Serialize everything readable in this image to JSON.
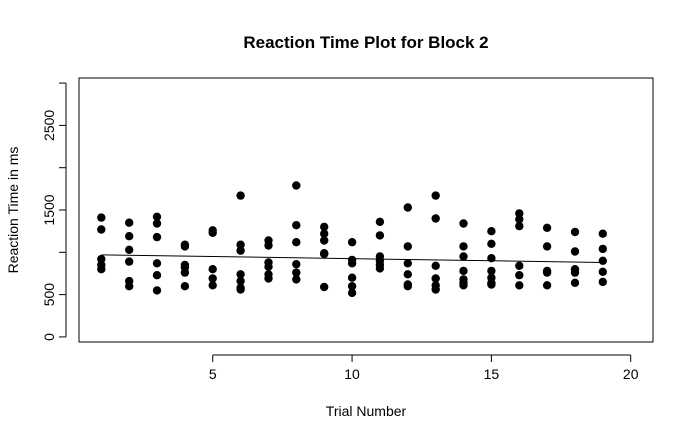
{
  "chart_data": {
    "type": "scatter",
    "title": "Reaction Time Plot for Block 2",
    "xlabel": "Trial Number",
    "ylabel": "Reaction Time in ms",
    "xlim": [
      0.2,
      20.8
    ],
    "ylim": [
      -60,
      3060
    ],
    "x_axis_range": [
      1,
      20
    ],
    "y_axis_range": [
      0,
      3000
    ],
    "xticks": [
      5,
      10,
      15,
      20
    ],
    "yticks": [
      0,
      500,
      1500,
      2500
    ],
    "ytick_labels": [
      "0",
      "500",
      "1500",
      "2500"
    ],
    "grid": false,
    "legend": false,
    "points": [
      {
        "x": 1,
        "y": 1410
      },
      {
        "x": 1,
        "y": 1270
      },
      {
        "x": 1,
        "y": 920
      },
      {
        "x": 1,
        "y": 850
      },
      {
        "x": 1,
        "y": 800
      },
      {
        "x": 2,
        "y": 1350
      },
      {
        "x": 2,
        "y": 1190
      },
      {
        "x": 2,
        "y": 1030
      },
      {
        "x": 2,
        "y": 890
      },
      {
        "x": 2,
        "y": 660
      },
      {
        "x": 2,
        "y": 600
      },
      {
        "x": 3,
        "y": 1420
      },
      {
        "x": 3,
        "y": 1340
      },
      {
        "x": 3,
        "y": 1180
      },
      {
        "x": 3,
        "y": 870
      },
      {
        "x": 3,
        "y": 730
      },
      {
        "x": 3,
        "y": 550
      },
      {
        "x": 4,
        "y": 1090
      },
      {
        "x": 4,
        "y": 1070
      },
      {
        "x": 4,
        "y": 850
      },
      {
        "x": 4,
        "y": 820
      },
      {
        "x": 4,
        "y": 760
      },
      {
        "x": 4,
        "y": 600
      },
      {
        "x": 5,
        "y": 1260
      },
      {
        "x": 5,
        "y": 1230
      },
      {
        "x": 5,
        "y": 800
      },
      {
        "x": 5,
        "y": 690
      },
      {
        "x": 5,
        "y": 610
      },
      {
        "x": 6,
        "y": 1670
      },
      {
        "x": 6,
        "y": 1090
      },
      {
        "x": 6,
        "y": 1020
      },
      {
        "x": 6,
        "y": 740
      },
      {
        "x": 6,
        "y": 660
      },
      {
        "x": 6,
        "y": 580
      },
      {
        "x": 6,
        "y": 560
      },
      {
        "x": 7,
        "y": 1140
      },
      {
        "x": 7,
        "y": 1080
      },
      {
        "x": 7,
        "y": 880
      },
      {
        "x": 7,
        "y": 830
      },
      {
        "x": 7,
        "y": 740
      },
      {
        "x": 7,
        "y": 690
      },
      {
        "x": 8,
        "y": 1790
      },
      {
        "x": 8,
        "y": 1320
      },
      {
        "x": 8,
        "y": 1120
      },
      {
        "x": 8,
        "y": 860
      },
      {
        "x": 8,
        "y": 760
      },
      {
        "x": 8,
        "y": 680
      },
      {
        "x": 9,
        "y": 1300
      },
      {
        "x": 9,
        "y": 1220
      },
      {
        "x": 9,
        "y": 1140
      },
      {
        "x": 9,
        "y": 990
      },
      {
        "x": 9,
        "y": 980
      },
      {
        "x": 9,
        "y": 590
      },
      {
        "x": 10,
        "y": 1120
      },
      {
        "x": 10,
        "y": 910
      },
      {
        "x": 10,
        "y": 870
      },
      {
        "x": 10,
        "y": 700
      },
      {
        "x": 10,
        "y": 600
      },
      {
        "x": 10,
        "y": 520
      },
      {
        "x": 11,
        "y": 1360
      },
      {
        "x": 11,
        "y": 1200
      },
      {
        "x": 11,
        "y": 950
      },
      {
        "x": 11,
        "y": 900
      },
      {
        "x": 11,
        "y": 850
      },
      {
        "x": 11,
        "y": 810
      },
      {
        "x": 12,
        "y": 1530
      },
      {
        "x": 12,
        "y": 1070
      },
      {
        "x": 12,
        "y": 870
      },
      {
        "x": 12,
        "y": 740
      },
      {
        "x": 12,
        "y": 620
      },
      {
        "x": 12,
        "y": 600
      },
      {
        "x": 13,
        "y": 1670
      },
      {
        "x": 13,
        "y": 1400
      },
      {
        "x": 13,
        "y": 840
      },
      {
        "x": 13,
        "y": 690
      },
      {
        "x": 13,
        "y": 610
      },
      {
        "x": 13,
        "y": 560
      },
      {
        "x": 14,
        "y": 1340
      },
      {
        "x": 14,
        "y": 1070
      },
      {
        "x": 14,
        "y": 950
      },
      {
        "x": 14,
        "y": 780
      },
      {
        "x": 14,
        "y": 680
      },
      {
        "x": 14,
        "y": 640
      },
      {
        "x": 14,
        "y": 610
      },
      {
        "x": 15,
        "y": 1250
      },
      {
        "x": 15,
        "y": 1100
      },
      {
        "x": 15,
        "y": 930
      },
      {
        "x": 15,
        "y": 780
      },
      {
        "x": 15,
        "y": 700
      },
      {
        "x": 15,
        "y": 640
      },
      {
        "x": 15,
        "y": 620
      },
      {
        "x": 16,
        "y": 1460
      },
      {
        "x": 16,
        "y": 1390
      },
      {
        "x": 16,
        "y": 1310
      },
      {
        "x": 16,
        "y": 840
      },
      {
        "x": 16,
        "y": 730
      },
      {
        "x": 16,
        "y": 610
      },
      {
        "x": 17,
        "y": 1290
      },
      {
        "x": 17,
        "y": 1070
      },
      {
        "x": 17,
        "y": 780
      },
      {
        "x": 17,
        "y": 760
      },
      {
        "x": 17,
        "y": 610
      },
      {
        "x": 18,
        "y": 1240
      },
      {
        "x": 18,
        "y": 1010
      },
      {
        "x": 18,
        "y": 800
      },
      {
        "x": 18,
        "y": 760
      },
      {
        "x": 18,
        "y": 640
      },
      {
        "x": 19,
        "y": 1220
      },
      {
        "x": 19,
        "y": 1040
      },
      {
        "x": 19,
        "y": 900
      },
      {
        "x": 19,
        "y": 770
      },
      {
        "x": 19,
        "y": 650
      }
    ],
    "trend_line": {
      "x": [
        1,
        19
      ],
      "y": [
        970,
        880
      ]
    }
  }
}
